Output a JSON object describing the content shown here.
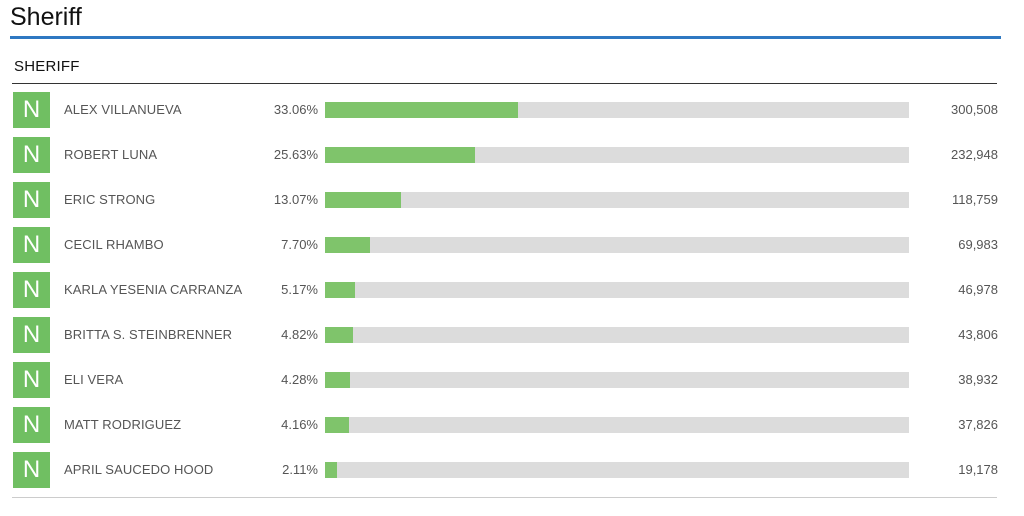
{
  "page": {
    "title": "Sheriff"
  },
  "contest": {
    "title": "SHERIFF",
    "candidates": [
      {
        "badge": "N",
        "name": "ALEX VILLANUEVA",
        "percent_label": "33.06%",
        "percent": 33.06,
        "votes": "300,508"
      },
      {
        "badge": "N",
        "name": "ROBERT LUNA",
        "percent_label": "25.63%",
        "percent": 25.63,
        "votes": "232,948"
      },
      {
        "badge": "N",
        "name": "ERIC STRONG",
        "percent_label": "13.07%",
        "percent": 13.07,
        "votes": "118,759"
      },
      {
        "badge": "N",
        "name": "CECIL RHAMBO",
        "percent_label": "7.70%",
        "percent": 7.7,
        "votes": "69,983"
      },
      {
        "badge": "N",
        "name": "KARLA YESENIA CARRANZA",
        "percent_label": "5.17%",
        "percent": 5.17,
        "votes": "46,978"
      },
      {
        "badge": "N",
        "name": "BRITTA S. STEINBRENNER",
        "percent_label": "4.82%",
        "percent": 4.82,
        "votes": "43,806"
      },
      {
        "badge": "N",
        "name": "ELI VERA",
        "percent_label": "4.28%",
        "percent": 4.28,
        "votes": "38,932"
      },
      {
        "badge": "N",
        "name": "MATT RODRIGUEZ",
        "percent_label": "4.16%",
        "percent": 4.16,
        "votes": "37,826"
      },
      {
        "badge": "N",
        "name": "APRIL SAUCEDO HOOD",
        "percent_label": "2.11%",
        "percent": 2.11,
        "votes": "19,178"
      }
    ]
  },
  "colors": {
    "accent_rule": "#2e78c2",
    "badge": "#70bf62",
    "bar_fill": "#7fc46b",
    "bar_track": "#dcdcdc"
  }
}
